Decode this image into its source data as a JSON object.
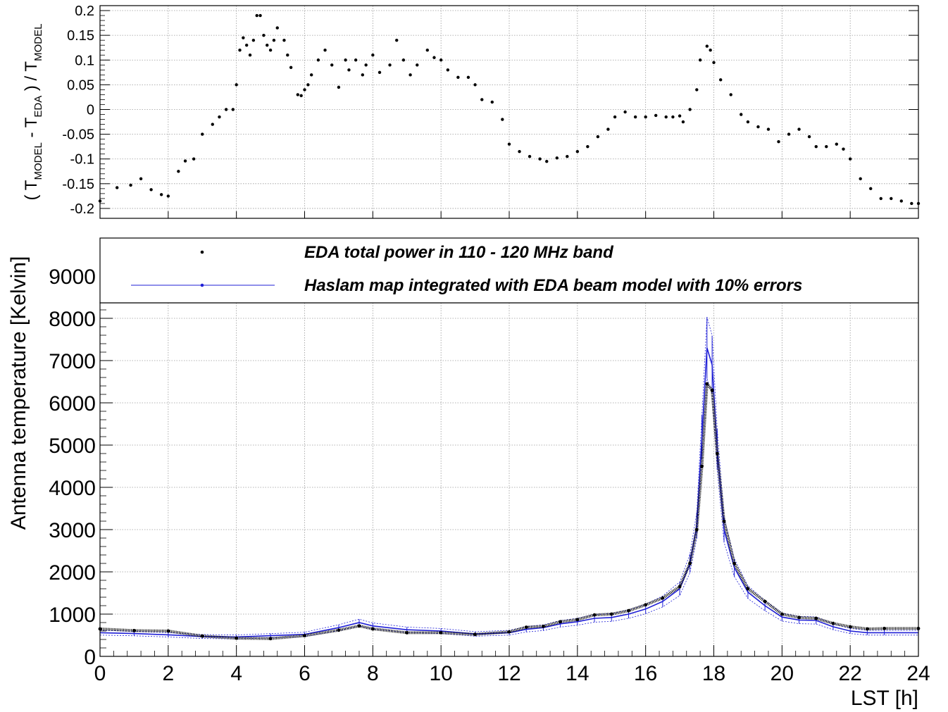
{
  "colors": {
    "data_points": "#000000",
    "model": "#1f1fd6",
    "grid": "#9a9a9a",
    "frame": "#000000"
  },
  "chart_data": [
    {
      "type": "scatter",
      "ylabel": "( T_MODEL - T_EDA ) / T_MODEL",
      "xlim": [
        0,
        24
      ],
      "ylim": [
        -0.22,
        0.21
      ],
      "grid": true,
      "y_ticks": [
        -0.2,
        -0.15,
        -0.1,
        -0.05,
        0,
        0.05,
        0.1,
        0.15,
        0.2
      ],
      "y_tick_labels": [
        "-0.2",
        "-0.15",
        "-0.1",
        "-0.05",
        "0",
        "0.05",
        "0.1",
        "0.15",
        "0.2"
      ],
      "series": [
        {
          "x": [
            0.0,
            0.5,
            0.9,
            1.2,
            1.5,
            1.8,
            2.0,
            2.3,
            2.5,
            2.75,
            3.0,
            3.3,
            3.5,
            3.7,
            3.9,
            4.0,
            4.1,
            4.2,
            4.3,
            4.4,
            4.5,
            4.6,
            4.7,
            4.8,
            4.9,
            5.0,
            5.1,
            5.2,
            5.4,
            5.5,
            5.6,
            5.8,
            5.9,
            6.0,
            6.1,
            6.2,
            6.4,
            6.6,
            6.8,
            7.0,
            7.2,
            7.3,
            7.5,
            7.7,
            7.8,
            8.0,
            8.2,
            8.5,
            8.7,
            8.9,
            9.1,
            9.3,
            9.6,
            9.8,
            10.0,
            10.2,
            10.5,
            10.8,
            11.0,
            11.2,
            11.5,
            11.8,
            12.0,
            12.3,
            12.6,
            12.9,
            13.1,
            13.4,
            13.7,
            14.0,
            14.3,
            14.6,
            14.9,
            15.1,
            15.4,
            15.7,
            16.0,
            16.3,
            16.6,
            16.8,
            17.0,
            17.1,
            17.3,
            17.5,
            17.6,
            17.8,
            17.9,
            18.0,
            18.2,
            18.5,
            18.8,
            19.0,
            19.3,
            19.6,
            19.9,
            20.2,
            20.5,
            20.8,
            21.0,
            21.3,
            21.6,
            21.8,
            22.0,
            22.3,
            22.6,
            22.9,
            23.2,
            23.5,
            23.8,
            24.0
          ],
          "y": [
            -0.185,
            -0.158,
            -0.153,
            -0.14,
            -0.162,
            -0.172,
            -0.175,
            -0.125,
            -0.104,
            -0.1,
            -0.05,
            -0.03,
            -0.015,
            0.0,
            0.0,
            0.05,
            0.12,
            0.145,
            0.13,
            0.11,
            0.14,
            0.19,
            0.19,
            0.15,
            0.13,
            0.12,
            0.14,
            0.165,
            0.14,
            0.11,
            0.085,
            0.03,
            0.028,
            0.04,
            0.05,
            0.07,
            0.1,
            0.12,
            0.09,
            0.045,
            0.1,
            0.08,
            0.1,
            0.07,
            0.09,
            0.11,
            0.075,
            0.09,
            0.14,
            0.1,
            0.07,
            0.09,
            0.12,
            0.105,
            0.1,
            0.08,
            0.065,
            0.065,
            0.05,
            0.02,
            0.015,
            -0.02,
            -0.07,
            -0.085,
            -0.095,
            -0.1,
            -0.105,
            -0.098,
            -0.095,
            -0.085,
            -0.075,
            -0.055,
            -0.04,
            -0.015,
            -0.005,
            -0.015,
            -0.015,
            -0.012,
            -0.015,
            -0.015,
            -0.013,
            -0.025,
            0.0,
            0.04,
            0.1,
            0.128,
            0.12,
            0.095,
            0.06,
            0.03,
            -0.01,
            -0.025,
            -0.035,
            -0.04,
            -0.065,
            -0.05,
            -0.04,
            -0.055,
            -0.075,
            -0.075,
            -0.07,
            -0.08,
            -0.1,
            -0.14,
            -0.16,
            -0.18,
            -0.18,
            -0.185,
            -0.19,
            -0.19
          ]
        }
      ]
    },
    {
      "type": "line",
      "xlabel": "LST [h]",
      "ylabel": "Antenna temperature [Kelvin]",
      "xlim": [
        0,
        24
      ],
      "ylim": [
        0,
        9900
      ],
      "grid": true,
      "x_ticks": [
        0,
        2,
        4,
        6,
        8,
        10,
        12,
        14,
        16,
        18,
        20,
        22,
        24
      ],
      "x_tick_labels": [
        "0",
        "2",
        "4",
        "6",
        "8",
        "10",
        "12",
        "14",
        "16",
        "18",
        "20",
        "22",
        "24"
      ],
      "y_ticks": [
        0,
        1000,
        2000,
        3000,
        4000,
        5000,
        6000,
        7000,
        8000,
        9000
      ],
      "y_tick_labels": [
        "0",
        "1000",
        "2000",
        "3000",
        "4000",
        "5000",
        "6000",
        "7000",
        "8000",
        "9000"
      ],
      "legend_position": "top",
      "legend": [
        {
          "label": "EDA total power in 110 - 120 MHz band",
          "marker": "point",
          "color": "#000000"
        },
        {
          "label": "Haslam map integrated with EDA beam model with 10% errors",
          "marker": "line-point",
          "color": "#1f1fd6"
        }
      ],
      "series": [
        {
          "name": "EDA total power in 110 - 120 MHz band",
          "x": [
            0.0,
            1.0,
            2.0,
            3.0,
            4.0,
            5.0,
            6.0,
            7.0,
            7.6,
            8.0,
            9.0,
            10.0,
            11.0,
            12.0,
            12.5,
            13.0,
            13.5,
            14.0,
            14.5,
            15.0,
            15.5,
            16.0,
            16.5,
            17.0,
            17.3,
            17.5,
            17.65,
            17.8,
            17.95,
            18.1,
            18.3,
            18.6,
            19.0,
            19.5,
            20.0,
            20.5,
            21.0,
            21.5,
            22.0,
            22.5,
            23.0,
            24.0
          ],
          "y": [
            650,
            610,
            600,
            480,
            430,
            420,
            490,
            620,
            720,
            650,
            560,
            560,
            520,
            580,
            690,
            710,
            820,
            870,
            980,
            1000,
            1080,
            1220,
            1380,
            1650,
            2200,
            3000,
            4500,
            6450,
            6300,
            4800,
            3200,
            2200,
            1600,
            1300,
            1000,
            920,
            900,
            780,
            700,
            650,
            660,
            660
          ]
        },
        {
          "name": "Haslam map integrated with EDA beam model with 10% errors",
          "x": [
            0.0,
            1.0,
            2.0,
            3.0,
            4.0,
            5.0,
            6.0,
            7.0,
            7.6,
            8.0,
            9.0,
            10.0,
            11.0,
            12.0,
            12.5,
            13.0,
            13.5,
            14.0,
            14.5,
            15.0,
            15.5,
            16.0,
            16.5,
            17.0,
            17.3,
            17.5,
            17.65,
            17.8,
            17.95,
            18.1,
            18.3,
            18.6,
            19.0,
            19.5,
            20.0,
            20.5,
            21.0,
            21.5,
            22.0,
            22.5,
            23.0,
            24.0
          ],
          "y": [
            560,
            540,
            510,
            470,
            460,
            490,
            520,
            680,
            800,
            720,
            630,
            600,
            530,
            560,
            640,
            680,
            770,
            820,
            900,
            920,
            1000,
            1120,
            1300,
            1600,
            2200,
            3100,
            5200,
            7300,
            6900,
            4900,
            3000,
            2100,
            1520,
            1200,
            930,
            860,
            850,
            700,
            600,
            560,
            560,
            560
          ]
        }
      ]
    }
  ]
}
